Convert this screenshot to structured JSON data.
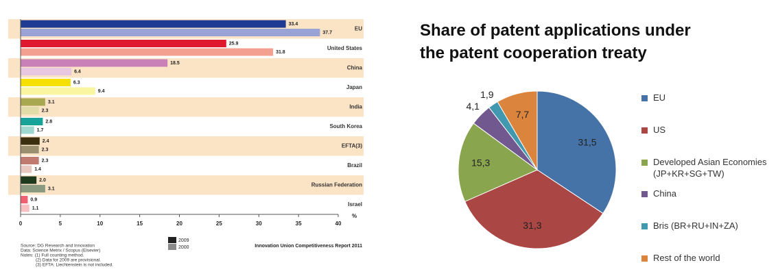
{
  "chart_data": [
    {
      "type": "bar",
      "orientation": "horizontal",
      "categories": [
        "EU",
        "United States",
        "China",
        "Japan",
        "India",
        "South Korea",
        "EFTA(3)",
        "Brazil",
        "Russian Federation",
        "Israel"
      ],
      "series": [
        {
          "name": "2009",
          "color": "#222222",
          "colors": [
            "#1f3a93",
            "#e0182d",
            "#c97fb8",
            "#f5e000",
            "#a8a850",
            "#17a39a",
            "#3a3010",
            "#c07a70",
            "#1e3a1e",
            "#f06070"
          ],
          "values": [
            33.4,
            25.9,
            18.5,
            6.3,
            3.1,
            2.8,
            2.4,
            2.3,
            2.0,
            0.9
          ],
          "value_labels": [
            "33.4",
            "25.9",
            "18.5",
            "6.3",
            "3.1",
            "2.8",
            "2.4",
            "2.3",
            "2.0",
            "0.9"
          ]
        },
        {
          "name": "2000",
          "color": "#8a8a8a",
          "colors": [
            "#9aa3d6",
            "#f4a090",
            "#e8c8e0",
            "#faf5a0",
            "#e0dca8",
            "#9ed8d0",
            "#9a9070",
            "#e8c8c0",
            "#8a9a80",
            "#f8c0c0"
          ],
          "values": [
            37.7,
            31.8,
            6.4,
            9.4,
            2.3,
            1.7,
            2.3,
            1.4,
            3.1,
            1.1
          ],
          "value_labels": [
            "37.7",
            "31.8",
            "6.4",
            "9.4",
            "2.3",
            "1.7",
            "2.3",
            "1.4",
            "3.1",
            "1.1"
          ]
        }
      ],
      "xlim": [
        0,
        40
      ],
      "xticks": [
        0,
        5,
        10,
        15,
        20,
        25,
        30,
        35,
        40
      ],
      "xlabel": "%",
      "notes": [
        "Source: DG Research and Innovation",
        "Data: Science Metrix / Scopus (Elsevier)",
        "Notes:  (1) Full counting method.",
        "(2) Data for 2009 are provisional.",
        "(3) EFTA: Liechtenstein is not included."
      ],
      "caption": "Innovation Union Competitiveness Report 2011"
    },
    {
      "type": "pie",
      "title": "Share of patent applications under the patent cooperation treaty",
      "categories": [
        "EU",
        "US",
        "Developed Asian Economies (JP+KR+SG+TW)",
        "China",
        "Bris (BR+RU+IN+ZA)",
        "Rest of the world"
      ],
      "values": [
        31.5,
        31.3,
        15.3,
        4.1,
        1.9,
        7.7
      ],
      "value_labels": [
        "31,5",
        "31,3",
        "15,3",
        "4,1",
        "1,9",
        "7,7"
      ],
      "colors": [
        "#4572a7",
        "#aa4643",
        "#89a54e",
        "#71588f",
        "#4198af",
        "#db843d"
      ],
      "legend": "right"
    }
  ]
}
